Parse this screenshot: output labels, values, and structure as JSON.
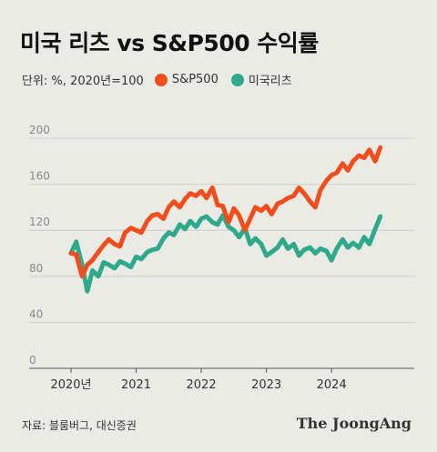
{
  "header": {
    "title": "미국 리츠 vs S&P500 수익률"
  },
  "legend": {
    "unit_label": "단위: %, 2020년=100",
    "items": [
      {
        "label": "S&P500",
        "color": "#f04e1c"
      },
      {
        "label": "미국리츠",
        "color": "#2fa98c"
      }
    ]
  },
  "chart_data": {
    "type": "line",
    "title": "미국 리츠 vs S&P500 수익률",
    "ylim": [
      0,
      200
    ],
    "yticks": [
      0,
      40,
      80,
      120,
      160,
      200
    ],
    "xlim": [
      2020.0,
      2024.85
    ],
    "xticks": [
      {
        "value": 2020.0,
        "label": "2020년"
      },
      {
        "value": 2021.0,
        "label": "2021"
      },
      {
        "value": 2022.0,
        "label": "2022"
      },
      {
        "value": 2023.0,
        "label": "2023"
      },
      {
        "value": 2024.0,
        "label": "2024"
      }
    ],
    "grid": true,
    "legend_position": "top-left",
    "series": [
      {
        "name": "S&P500",
        "color": "#f04e1c",
        "x": [
          2020.0,
          2020.08,
          2020.17,
          2020.25,
          2020.33,
          2020.42,
          2020.5,
          2020.58,
          2020.67,
          2020.75,
          2020.83,
          2020.92,
          2021.0,
          2021.08,
          2021.17,
          2021.25,
          2021.33,
          2021.42,
          2021.5,
          2021.58,
          2021.67,
          2021.75,
          2021.83,
          2021.92,
          2022.0,
          2022.08,
          2022.17,
          2022.25,
          2022.33,
          2022.42,
          2022.5,
          2022.58,
          2022.67,
          2022.75,
          2022.83,
          2022.92,
          2023.0,
          2023.08,
          2023.17,
          2023.25,
          2023.33,
          2023.42,
          2023.5,
          2023.58,
          2023.67,
          2023.75,
          2023.83,
          2023.92,
          2024.0,
          2024.08,
          2024.17,
          2024.25,
          2024.33,
          2024.42,
          2024.5,
          2024.58,
          2024.67,
          2024.75
        ],
        "values": [
          100,
          99,
          80,
          90,
          94,
          101,
          107,
          112,
          108,
          106,
          118,
          122,
          120,
          118,
          128,
          133,
          134,
          130,
          140,
          145,
          140,
          147,
          152,
          150,
          154,
          148,
          157,
          142,
          141,
          127,
          139,
          133,
          120,
          130,
          140,
          137,
          141,
          134,
          143,
          145,
          148,
          150,
          157,
          152,
          145,
          140,
          155,
          163,
          168,
          170,
          178,
          172,
          180,
          185,
          183,
          190,
          180,
          192
        ]
      },
      {
        "name": "미국리츠",
        "color": "#2fa98c",
        "x": [
          2020.0,
          2020.08,
          2020.17,
          2020.25,
          2020.33,
          2020.42,
          2020.5,
          2020.58,
          2020.67,
          2020.75,
          2020.83,
          2020.92,
          2021.0,
          2021.08,
          2021.17,
          2021.25,
          2021.33,
          2021.42,
          2021.5,
          2021.58,
          2021.67,
          2021.75,
          2021.83,
          2021.92,
          2022.0,
          2022.08,
          2022.17,
          2022.25,
          2022.33,
          2022.42,
          2022.5,
          2022.58,
          2022.67,
          2022.75,
          2022.83,
          2022.92,
          2023.0,
          2023.08,
          2023.17,
          2023.25,
          2023.33,
          2023.42,
          2023.5,
          2023.58,
          2023.67,
          2023.75,
          2023.83,
          2023.92,
          2024.0,
          2024.08,
          2024.17,
          2024.25,
          2024.33,
          2024.42,
          2024.5,
          2024.58,
          2024.67,
          2024.75
        ],
        "values": [
          100,
          110,
          90,
          67,
          85,
          80,
          92,
          90,
          87,
          93,
          91,
          88,
          97,
          95,
          101,
          103,
          104,
          113,
          118,
          116,
          125,
          121,
          128,
          123,
          130,
          132,
          127,
          125,
          133,
          123,
          120,
          114,
          122,
          108,
          113,
          108,
          98,
          101,
          105,
          112,
          104,
          108,
          98,
          103,
          105,
          100,
          104,
          102,
          94,
          104,
          112,
          105,
          109,
          105,
          114,
          108,
          121,
          132
        ]
      }
    ]
  },
  "footer": {
    "source": "자료: 블룸버그, 대신증권",
    "brand": "The JoongAng"
  }
}
